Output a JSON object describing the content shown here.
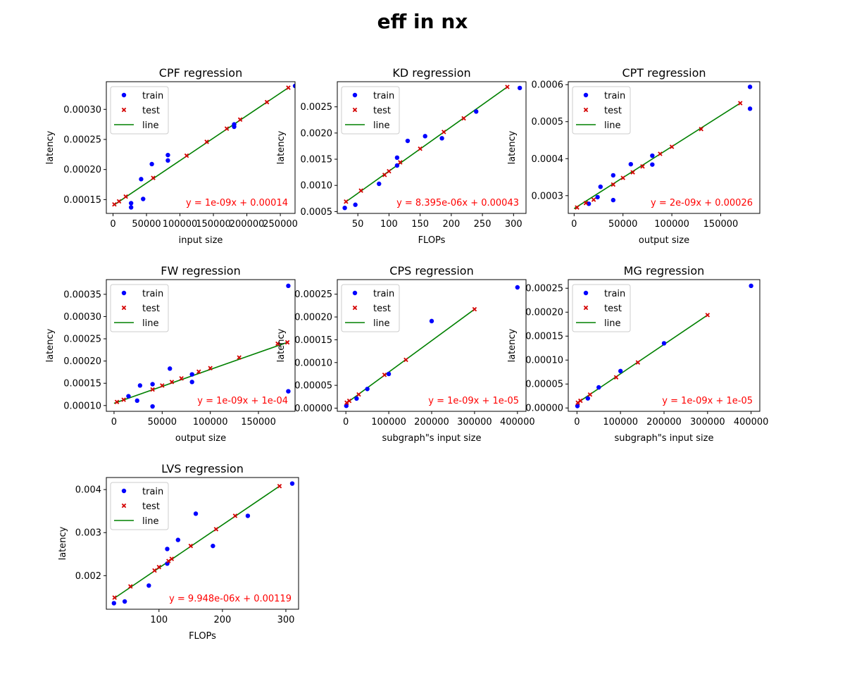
{
  "suptitle": "eff in nx",
  "legend_labels": [
    "train",
    "test",
    "line"
  ],
  "colors": {
    "train": "#0000ff",
    "test": "#d40000",
    "line": "#008000",
    "equation": "#ff0000"
  },
  "chart_data": [
    {
      "type": "scatter",
      "title": "CPF regression",
      "xlabel": "input size",
      "ylabel": "latency",
      "legend": "upper-left",
      "xlim": [
        -10000,
        272000
      ],
      "ylim": [
        0.000127,
        0.000346
      ],
      "xticks": [
        0,
        50000,
        100000,
        150000,
        200000,
        250000
      ],
      "xticklabels": [
        "0",
        "50000",
        "100000",
        "150000",
        "200000",
        "250000"
      ],
      "yticks": [
        0.00015,
        0.0002,
        0.00025,
        0.0003
      ],
      "yticklabels": [
        "0.00015",
        "0.00020",
        "0.00025",
        "0.00030"
      ],
      "series": [
        {
          "name": "train",
          "marker": "dot",
          "points": [
            [
              27000,
              0.000144
            ],
            [
              27000,
              0.000137
            ],
            [
              42000,
              0.000184
            ],
            [
              45000,
              0.000151
            ],
            [
              58000,
              0.000209
            ],
            [
              82000,
              0.000224
            ],
            [
              82000,
              0.000215
            ],
            [
              181000,
              0.000275
            ],
            [
              181000,
              0.000271
            ],
            [
              272000,
              0.000339
            ]
          ]
        },
        {
          "name": "test",
          "marker": "x",
          "points": [
            [
              2000,
              0.000142
            ],
            [
              9000,
              0.000147
            ],
            [
              19000,
              0.000155
            ],
            [
              60000,
              0.000186
            ],
            [
              110000,
              0.000223
            ],
            [
              140000,
              0.000246
            ],
            [
              170000,
              0.000268
            ],
            [
              190000,
              0.000283
            ],
            [
              230000,
              0.000312
            ],
            [
              262000,
              0.000336
            ]
          ]
        },
        {
          "name": "line",
          "marker": "line",
          "points": [
            [
              0,
              0.00014
            ],
            [
              262000,
              0.000336
            ]
          ]
        }
      ],
      "equation": "y = 1e-09x + 0.00014"
    },
    {
      "type": "scatter",
      "title": "KD regression",
      "xlabel": "FLOPs",
      "ylabel": "latency",
      "legend": "upper-left",
      "xlim": [
        17,
        320
      ],
      "ylim": [
        0.000465,
        0.00298
      ],
      "xticks": [
        50,
        100,
        150,
        200,
        250,
        300
      ],
      "xticklabels": [
        "50",
        "100",
        "150",
        "200",
        "250",
        "300"
      ],
      "yticks": [
        0.0005,
        0.001,
        0.0015,
        0.002,
        0.0025
      ],
      "yticklabels": [
        "0.0005",
        "0.0010",
        "0.0015",
        "0.0020",
        "0.0025"
      ],
      "series": [
        {
          "name": "train",
          "marker": "dot",
          "points": [
            [
              29,
              0.00057
            ],
            [
              46,
              0.00063
            ],
            [
              84,
              0.00103
            ],
            [
              113,
              0.00138
            ],
            [
              113,
              0.00153
            ],
            [
              130,
              0.00185
            ],
            [
              158,
              0.00194
            ],
            [
              185,
              0.0019
            ],
            [
              240,
              0.00241
            ],
            [
              310,
              0.00286
            ]
          ]
        },
        {
          "name": "test",
          "marker": "x",
          "points": [
            [
              31,
              0.00069
            ],
            [
              55,
              0.0009
            ],
            [
              93,
              0.0012
            ],
            [
              100,
              0.00127
            ],
            [
              118,
              0.00144
            ],
            [
              150,
              0.0017
            ],
            [
              188,
              0.00202
            ],
            [
              220,
              0.00228
            ],
            [
              290,
              0.00288
            ]
          ]
        },
        {
          "name": "line",
          "marker": "line",
          "points": [
            [
              30,
              0.00068
            ],
            [
              290,
              0.00288
            ]
          ]
        }
      ],
      "equation": "y = 8.395e-06x + 0.00043"
    },
    {
      "type": "scatter",
      "title": "CPT regression",
      "xlabel": "output size",
      "ylabel": "latency",
      "legend": "upper-left",
      "xlim": [
        -6000,
        190000
      ],
      "ylim": [
        0.000252,
        0.000608
      ],
      "xticks": [
        0,
        50000,
        100000,
        150000
      ],
      "xticklabels": [
        "0",
        "50000",
        "100000",
        "150000"
      ],
      "yticks": [
        0.0003,
        0.0004,
        0.0005,
        0.0006
      ],
      "yticklabels": [
        "0.0003",
        "0.0004",
        "0.0005",
        "0.0006"
      ],
      "series": [
        {
          "name": "train",
          "marker": "dot",
          "points": [
            [
              15000,
              0.000278
            ],
            [
              24000,
              0.000296
            ],
            [
              27000,
              0.000324
            ],
            [
              40000,
              0.000288
            ],
            [
              40000,
              0.000355
            ],
            [
              58000,
              0.000385
            ],
            [
              80000,
              0.000408
            ],
            [
              80000,
              0.000384
            ],
            [
              180000,
              0.000594
            ],
            [
              180000,
              0.000535
            ]
          ]
        },
        {
          "name": "test",
          "marker": "x",
          "points": [
            [
              3000,
              0.000268
            ],
            [
              12000,
              0.00028
            ],
            [
              20000,
              0.000289
            ],
            [
              40000,
              0.00033
            ],
            [
              50000,
              0.000348
            ],
            [
              60000,
              0.000363
            ],
            [
              70000,
              0.000379
            ],
            [
              88000,
              0.000413
            ],
            [
              100000,
              0.000432
            ],
            [
              130000,
              0.00048
            ],
            [
              170000,
              0.00055
            ]
          ]
        },
        {
          "name": "line",
          "marker": "line",
          "points": [
            [
              0,
              0.000265
            ],
            [
              170000,
              0.00055
            ]
          ]
        }
      ],
      "equation": "y = 2e-09x + 0.00026"
    },
    {
      "type": "scatter",
      "title": "FW regression",
      "xlabel": "output size",
      "ylabel": "latency",
      "legend": "upper-left",
      "xlim": [
        -8000,
        188000
      ],
      "ylim": [
        8.7e-05,
        0.000383
      ],
      "xticks": [
        0,
        50000,
        100000,
        150000
      ],
      "xticklabels": [
        "0",
        "50000",
        "100000",
        "150000"
      ],
      "yticks": [
        0.0001,
        0.00015,
        0.0002,
        0.00025,
        0.0003,
        0.00035
      ],
      "yticklabels": [
        "0.00010",
        "0.00015",
        "0.00020",
        "0.00025",
        "0.00030",
        "0.00035"
      ],
      "series": [
        {
          "name": "train",
          "marker": "dot",
          "points": [
            [
              15000,
              0.000121
            ],
            [
              24000,
              0.000111
            ],
            [
              27000,
              0.000145
            ],
            [
              40000,
              0.000148
            ],
            [
              40000,
              9.8e-05
            ],
            [
              58000,
              0.000183
            ],
            [
              81000,
              0.000153
            ],
            [
              81000,
              0.00017
            ],
            [
              181000,
              0.000369
            ],
            [
              181000,
              0.000132
            ]
          ]
        },
        {
          "name": "test",
          "marker": "x",
          "points": [
            [
              3000,
              0.000108
            ],
            [
              10000,
              0.000113
            ],
            [
              40000,
              0.000136
            ],
            [
              50000,
              0.000145
            ],
            [
              60000,
              0.000153
            ],
            [
              70000,
              0.000161
            ],
            [
              88000,
              0.000176
            ],
            [
              100000,
              0.000184
            ],
            [
              130000,
              0.000208
            ],
            [
              170000,
              0.000239
            ],
            [
              180000,
              0.000242
            ]
          ]
        },
        {
          "name": "line",
          "marker": "line",
          "points": [
            [
              0,
              0.000105
            ],
            [
              180000,
              0.000242
            ]
          ]
        }
      ],
      "equation": "y = 1e-09x + 1e-04"
    },
    {
      "type": "scatter",
      "title": "CPS regression",
      "xlabel": "subgraph\"s input size",
      "ylabel": "latency",
      "legend": "upper-left",
      "xlim": [
        -20000,
        420000
      ],
      "ylim": [
        -7e-06,
        0.000282
      ],
      "xticks": [
        0,
        100000,
        200000,
        300000,
        400000
      ],
      "xticklabels": [
        "0",
        "100000",
        "200000",
        "300000",
        "400000"
      ],
      "yticks": [
        0,
        5e-05,
        0.0001,
        0.00015,
        0.0002,
        0.00025
      ],
      "yticklabels": [
        "0.00000",
        "0.00005",
        "0.00010",
        "0.00015",
        "0.00020",
        "0.00025"
      ],
      "series": [
        {
          "name": "train",
          "marker": "dot",
          "points": [
            [
              1000,
              5e-06
            ],
            [
              25000,
              2.1e-05
            ],
            [
              50000,
              4.2e-05
            ],
            [
              100000,
              7.5e-05
            ],
            [
              200000,
              0.000191
            ],
            [
              400000,
              0.000265
            ]
          ]
        },
        {
          "name": "test",
          "marker": "x",
          "points": [
            [
              2000,
              1.2e-05
            ],
            [
              8000,
              1.6e-05
            ],
            [
              30000,
              3e-05
            ],
            [
              90000,
              7.3e-05
            ],
            [
              140000,
              0.000106
            ],
            [
              300000,
              0.000217
            ]
          ]
        },
        {
          "name": "line",
          "marker": "line",
          "points": [
            [
              0,
              1e-05
            ],
            [
              300000,
              0.000217
            ]
          ]
        }
      ],
      "equation": "y = 1e-09x + 1e-05"
    },
    {
      "type": "scatter",
      "title": "MG regression",
      "xlabel": "subgraph\"s input size",
      "ylabel": "latency",
      "legend": "upper-left",
      "xlim": [
        -20000,
        420000
      ],
      "ylim": [
        -7e-06,
        0.000268
      ],
      "xticks": [
        0,
        100000,
        200000,
        300000,
        400000
      ],
      "xticklabels": [
        "0",
        "100000",
        "200000",
        "300000",
        "400000"
      ],
      "yticks": [
        0,
        5e-05,
        0.0001,
        0.00015,
        0.0002,
        0.00025
      ],
      "yticklabels": [
        "0.00000",
        "0.00005",
        "0.00010",
        "0.00015",
        "0.00020",
        "0.00025"
      ],
      "series": [
        {
          "name": "train",
          "marker": "dot",
          "points": [
            [
              1000,
              4e-06
            ],
            [
              25000,
              2e-05
            ],
            [
              50000,
              4.3e-05
            ],
            [
              100000,
              7.7e-05
            ],
            [
              200000,
              0.000135
            ],
            [
              400000,
              0.000255
            ]
          ]
        },
        {
          "name": "test",
          "marker": "x",
          "points": [
            [
              2000,
              1.1e-05
            ],
            [
              8000,
              1.5e-05
            ],
            [
              30000,
              2.8e-05
            ],
            [
              90000,
              6.4e-05
            ],
            [
              140000,
              9.5e-05
            ],
            [
              300000,
              0.000194
            ]
          ]
        },
        {
          "name": "line",
          "marker": "line",
          "points": [
            [
              0,
              1e-05
            ],
            [
              300000,
              0.000194
            ]
          ]
        }
      ],
      "equation": "y = 1e-09x + 1e-05"
    },
    {
      "type": "scatter",
      "title": "LVS regression",
      "xlabel": "FLOPs",
      "ylabel": "latency",
      "legend": "upper-left",
      "xlim": [
        17,
        320
      ],
      "ylim": [
        0.00122,
        0.00428
      ],
      "xticks": [
        100,
        200,
        300
      ],
      "xticklabels": [
        "100",
        "200",
        "300"
      ],
      "yticks": [
        0.002,
        0.003,
        0.004
      ],
      "yticklabels": [
        "0.002",
        "0.003",
        "0.004"
      ],
      "series": [
        {
          "name": "train",
          "marker": "dot",
          "points": [
            [
              29,
              0.00136
            ],
            [
              46,
              0.0014
            ],
            [
              84,
              0.00177
            ],
            [
              113,
              0.00228
            ],
            [
              113,
              0.00262
            ],
            [
              130,
              0.00283
            ],
            [
              158,
              0.00344
            ],
            [
              185,
              0.00269
            ],
            [
              240,
              0.00339
            ],
            [
              310,
              0.00414
            ]
          ]
        },
        {
          "name": "test",
          "marker": "x",
          "points": [
            [
              30,
              0.00149
            ],
            [
              55,
              0.00175
            ],
            [
              93,
              0.00212
            ],
            [
              100,
              0.0022
            ],
            [
              115,
              0.00234
            ],
            [
              120,
              0.00239
            ],
            [
              150,
              0.00269
            ],
            [
              190,
              0.00308
            ],
            [
              220,
              0.00339
            ],
            [
              290,
              0.00408
            ]
          ]
        },
        {
          "name": "line",
          "marker": "line",
          "points": [
            [
              30,
              0.00148
            ],
            [
              290,
              0.00408
            ]
          ]
        }
      ],
      "equation": "y = 9.948e-06x + 0.00119"
    }
  ]
}
